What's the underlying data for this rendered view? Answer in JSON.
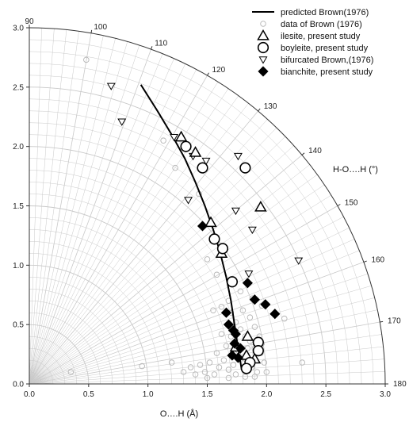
{
  "chart_data": {
    "type": "scatter",
    "coordinate_system": "polar-quadrant",
    "xlabel": "O….H (Å)",
    "angle_label": "H-O….H (°)",
    "xlim": [
      0.0,
      3.0
    ],
    "ylim": [
      0.0,
      3.0
    ],
    "x_ticks": [
      "0.0",
      "0.5",
      "1.0",
      "1.5",
      "2.0",
      "2.5",
      "3.0"
    ],
    "y_ticks": [
      "0.0",
      "0.5",
      "1.0",
      "1.5",
      "2.0",
      "2.5",
      "3.0"
    ],
    "angle_ticks": [
      "90",
      "100",
      "110",
      "120",
      "130",
      "140",
      "150",
      "160",
      "170",
      "180"
    ],
    "grid": true,
    "legend_position": "top-right",
    "series": [
      {
        "name": "predicted Brown(1976)",
        "marker": "line",
        "points": [
          [
            0.94,
            2.52
          ],
          [
            1.08,
            2.3
          ],
          [
            1.2,
            2.1
          ],
          [
            1.31,
            1.9
          ],
          [
            1.4,
            1.7
          ],
          [
            1.48,
            1.5
          ],
          [
            1.55,
            1.3
          ],
          [
            1.61,
            1.1
          ],
          [
            1.66,
            0.9
          ],
          [
            1.7,
            0.7
          ],
          [
            1.73,
            0.5
          ],
          [
            1.76,
            0.3
          ],
          [
            1.79,
            0.12
          ]
        ]
      },
      {
        "name": "data of Brown (1976)",
        "marker": "small-open-circle",
        "points": [
          [
            0.48,
            2.73
          ],
          [
            1.13,
            2.05
          ],
          [
            1.23,
            1.82
          ],
          [
            1.43,
            1.6
          ],
          [
            1.5,
            1.05
          ],
          [
            1.58,
            0.92
          ],
          [
            1.7,
            0.6
          ],
          [
            1.74,
            0.52
          ],
          [
            1.78,
            0.46
          ],
          [
            1.82,
            0.4
          ],
          [
            1.86,
            0.36
          ],
          [
            1.9,
            0.3
          ],
          [
            1.76,
            0.28
          ],
          [
            1.8,
            0.22
          ],
          [
            1.84,
            0.18
          ],
          [
            1.88,
            0.14
          ],
          [
            1.92,
            0.1
          ],
          [
            1.72,
            0.16
          ],
          [
            1.68,
            0.12
          ],
          [
            1.64,
            0.2
          ],
          [
            1.6,
            0.14
          ],
          [
            1.56,
            0.08
          ],
          [
            1.52,
            0.18
          ],
          [
            1.48,
            0.1
          ],
          [
            1.44,
            0.16
          ],
          [
            1.95,
            0.26
          ],
          [
            1.98,
            0.18
          ],
          [
            1.94,
            0.4
          ],
          [
            1.9,
            0.48
          ],
          [
            1.86,
            0.56
          ],
          [
            1.8,
            0.62
          ],
          [
            1.7,
            0.4
          ],
          [
            1.66,
            0.32
          ],
          [
            1.62,
            0.42
          ],
          [
            1.74,
            0.08
          ],
          [
            1.82,
            0.06
          ],
          [
            1.9,
            0.06
          ],
          [
            2.0,
            0.1
          ],
          [
            1.4,
            0.08
          ],
          [
            1.36,
            0.14
          ],
          [
            1.3,
            0.1
          ],
          [
            1.2,
            0.18
          ],
          [
            0.95,
            0.15
          ],
          [
            2.3,
            0.18
          ],
          [
            2.15,
            0.55
          ],
          [
            1.96,
            0.66
          ],
          [
            1.88,
            0.72
          ],
          [
            1.78,
            0.78
          ],
          [
            1.68,
            0.7
          ],
          [
            1.62,
            0.65
          ],
          [
            1.55,
            0.62
          ],
          [
            1.84,
            0.3
          ],
          [
            1.96,
            0.34
          ],
          [
            1.58,
            0.26
          ],
          [
            1.68,
            0.05
          ],
          [
            1.5,
            0.05
          ],
          [
            0.35,
            0.1
          ]
        ]
      },
      {
        "name": "ilesite, present study",
        "marker": "open-triangle-up",
        "points": [
          [
            1.28,
            2.08
          ],
          [
            1.4,
            1.95
          ],
          [
            1.95,
            1.49
          ],
          [
            1.53,
            1.36
          ],
          [
            1.62,
            1.1
          ],
          [
            1.84,
            0.4
          ],
          [
            1.74,
            0.31
          ],
          [
            1.9,
            0.21
          ],
          [
            1.83,
            0.24
          ]
        ]
      },
      {
        "name": "boyleite, present study",
        "marker": "open-circle",
        "points": [
          [
            1.32,
            2.0
          ],
          [
            1.46,
            1.82
          ],
          [
            1.82,
            1.82
          ],
          [
            1.56,
            1.22
          ],
          [
            1.63,
            1.14
          ],
          [
            1.71,
            0.86
          ],
          [
            1.93,
            0.35
          ],
          [
            1.93,
            0.28
          ],
          [
            1.86,
            0.18
          ],
          [
            1.83,
            0.13
          ]
        ]
      },
      {
        "name": "bifurcated Brown,(1976)",
        "marker": "open-triangle-down",
        "points": [
          [
            0.69,
            2.51
          ],
          [
            0.78,
            2.21
          ],
          [
            1.22,
            2.08
          ],
          [
            1.38,
            1.92
          ],
          [
            1.49,
            1.88
          ],
          [
            1.76,
            1.92
          ],
          [
            1.34,
            1.55
          ],
          [
            1.74,
            1.46
          ],
          [
            1.88,
            1.3
          ],
          [
            2.27,
            1.04
          ],
          [
            1.85,
            0.93
          ]
        ]
      },
      {
        "name": "bianchite, present study",
        "marker": "filled-diamond",
        "points": [
          [
            1.46,
            1.33
          ],
          [
            1.84,
            0.85
          ],
          [
            1.66,
            0.6
          ],
          [
            1.68,
            0.5
          ],
          [
            1.72,
            0.45
          ],
          [
            1.74,
            0.42
          ],
          [
            1.9,
            0.71
          ],
          [
            1.99,
            0.67
          ],
          [
            2.07,
            0.59
          ],
          [
            1.73,
            0.34
          ],
          [
            1.78,
            0.3
          ],
          [
            1.71,
            0.24
          ],
          [
            1.76,
            0.22
          ]
        ]
      }
    ]
  }
}
